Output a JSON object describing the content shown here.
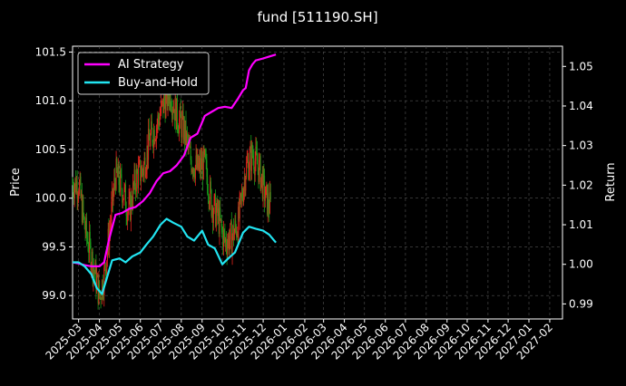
{
  "chart_data": {
    "type": "line",
    "title": "fund [511190.SH]",
    "ylabel_left": "Price",
    "ylabel_right": "Return",
    "xlabel": "",
    "x_ticks": [
      "2025-03",
      "2025-04",
      "2025-05",
      "2025-06",
      "2025-07",
      "2025-08",
      "2025-09",
      "2025-10",
      "2025-11",
      "2025-12",
      "2026-01",
      "2026-02",
      "2026-03",
      "2026-04",
      "2026-05",
      "2026-06",
      "2026-07",
      "2026-08",
      "2026-09",
      "2026-10",
      "2026-11",
      "2026-12",
      "2027-01",
      "2027-02"
    ],
    "x_range": [
      "2025-02-20",
      "2027-02-20"
    ],
    "ylim_left": [
      98.76,
      101.56
    ],
    "ylim_right": [
      0.9862,
      1.0551
    ],
    "y_ticks_left": [
      "99.0",
      "99.5",
      "100.0",
      "100.5",
      "101.0",
      "101.5"
    ],
    "y_ticks_right": [
      "0.99",
      "1.00",
      "1.01",
      "1.02",
      "1.03",
      "1.04",
      "1.05"
    ],
    "grid": true,
    "legend_position": "top-left",
    "colors": {
      "background": "#000000",
      "ai_strategy": "#ff00ff",
      "buy_and_hold": "#22e5f2",
      "candle_up": "#e0231d",
      "candle_down": "#1a9a1a",
      "grid": "#555555"
    },
    "series": [
      {
        "name": "AI Strategy",
        "axis": "right",
        "x": [
          "2025-02-20",
          "2025-03-01",
          "2025-03-10",
          "2025-03-20",
          "2025-04-01",
          "2025-04-08",
          "2025-04-15",
          "2025-04-25",
          "2025-05-05",
          "2025-05-15",
          "2025-05-25",
          "2025-06-05",
          "2025-06-15",
          "2025-06-25",
          "2025-07-05",
          "2025-07-15",
          "2025-07-25",
          "2025-08-05",
          "2025-08-15",
          "2025-08-25",
          "2025-09-05",
          "2025-09-15",
          "2025-09-25",
          "2025-10-05",
          "2025-10-15",
          "2025-10-25",
          "2025-11-01",
          "2025-11-05",
          "2025-11-10",
          "2025-11-15",
          "2025-11-20",
          "2025-12-01",
          "2025-12-10",
          "2025-12-20"
        ],
        "values": [
          1.0005,
          1.0002,
          0.9998,
          0.9995,
          0.9995,
          1.0005,
          1.006,
          1.0125,
          1.013,
          1.014,
          1.0145,
          1.016,
          1.018,
          1.021,
          1.023,
          1.0235,
          1.025,
          1.0275,
          1.032,
          1.033,
          1.0375,
          1.0385,
          1.0395,
          1.0398,
          1.0395,
          1.042,
          1.044,
          1.0445,
          1.049,
          1.0505,
          1.0515,
          1.052,
          1.0525,
          1.053
        ]
      },
      {
        "name": "Buy-and-Hold",
        "axis": "right",
        "x": [
          "2025-02-20",
          "2025-03-01",
          "2025-03-10",
          "2025-03-20",
          "2025-03-28",
          "2025-04-05",
          "2025-04-12",
          "2025-04-20",
          "2025-05-01",
          "2025-05-10",
          "2025-05-20",
          "2025-06-01",
          "2025-06-10",
          "2025-06-20",
          "2025-07-01",
          "2025-07-10",
          "2025-07-20",
          "2025-08-01",
          "2025-08-10",
          "2025-08-20",
          "2025-09-01",
          "2025-09-10",
          "2025-09-20",
          "2025-10-01",
          "2025-10-10",
          "2025-10-20",
          "2025-11-01",
          "2025-11-10",
          "2025-11-20",
          "2025-12-01",
          "2025-12-10",
          "2025-12-20"
        ],
        "values": [
          1.0005,
          1.0005,
          0.9995,
          0.9975,
          0.994,
          0.9925,
          0.9965,
          1.001,
          1.0015,
          1.0005,
          1.002,
          1.003,
          1.005,
          1.007,
          1.01,
          1.0115,
          1.0105,
          1.0095,
          1.007,
          1.006,
          1.0085,
          1.005,
          1.004,
          1.0,
          1.0015,
          1.003,
          1.008,
          1.0095,
          1.009,
          1.0085,
          1.0075,
          1.0055
        ]
      }
    ],
    "candles": {
      "axis": "left",
      "note_series": "daily price",
      "x": [
        "2025-02-20",
        "2025-03-01",
        "2025-03-10",
        "2025-03-20",
        "2025-04-01",
        "2025-04-08",
        "2025-04-15",
        "2025-04-25",
        "2025-05-05",
        "2025-05-15",
        "2025-05-25",
        "2025-06-05",
        "2025-06-15",
        "2025-06-25",
        "2025-07-05",
        "2025-07-15",
        "2025-07-25",
        "2025-08-05",
        "2025-08-15",
        "2025-08-25",
        "2025-09-05",
        "2025-09-15",
        "2025-09-25",
        "2025-10-05",
        "2025-10-15",
        "2025-10-25",
        "2025-11-05",
        "2025-11-15",
        "2025-11-25",
        "2025-12-05",
        "2025-12-12"
      ],
      "close": [
        100.15,
        100.15,
        99.7,
        99.4,
        99.0,
        99.2,
        99.6,
        100.25,
        100.1,
        99.85,
        100.2,
        100.3,
        100.6,
        100.75,
        100.95,
        101.1,
        100.85,
        100.7,
        100.4,
        100.3,
        100.35,
        99.95,
        99.8,
        99.55,
        99.6,
        99.75,
        100.3,
        100.45,
        100.3,
        100.0,
        99.9
      ]
    }
  }
}
